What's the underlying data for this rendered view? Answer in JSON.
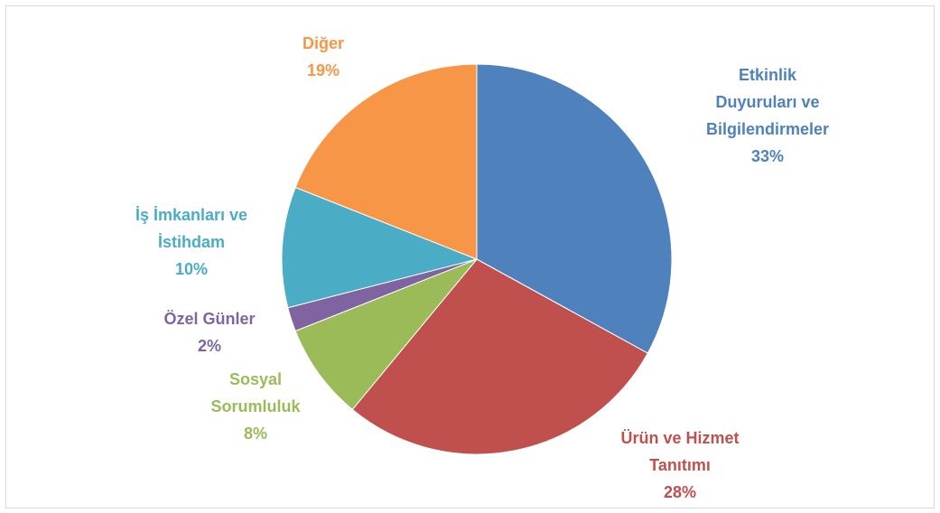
{
  "chart_data": {
    "type": "pie",
    "categories": [
      "Etkinlik Duyuruları ve Bilgilendirmeler",
      "Ürün ve Hizmet Tanıtımı",
      "Sosyal Sorumluluk",
      "Özel Günler",
      "İş İmkanları ve İstihdam",
      "Diğer"
    ],
    "values": [
      33,
      28,
      8,
      2,
      10,
      19
    ],
    "value_labels": [
      "33%",
      "28%",
      "8%",
      "2%",
      "10%",
      "19%"
    ],
    "colors": [
      "#4f81bd",
      "#c0504d",
      "#9bbb59",
      "#8064a2",
      "#4bacc6",
      "#f79646"
    ]
  }
}
